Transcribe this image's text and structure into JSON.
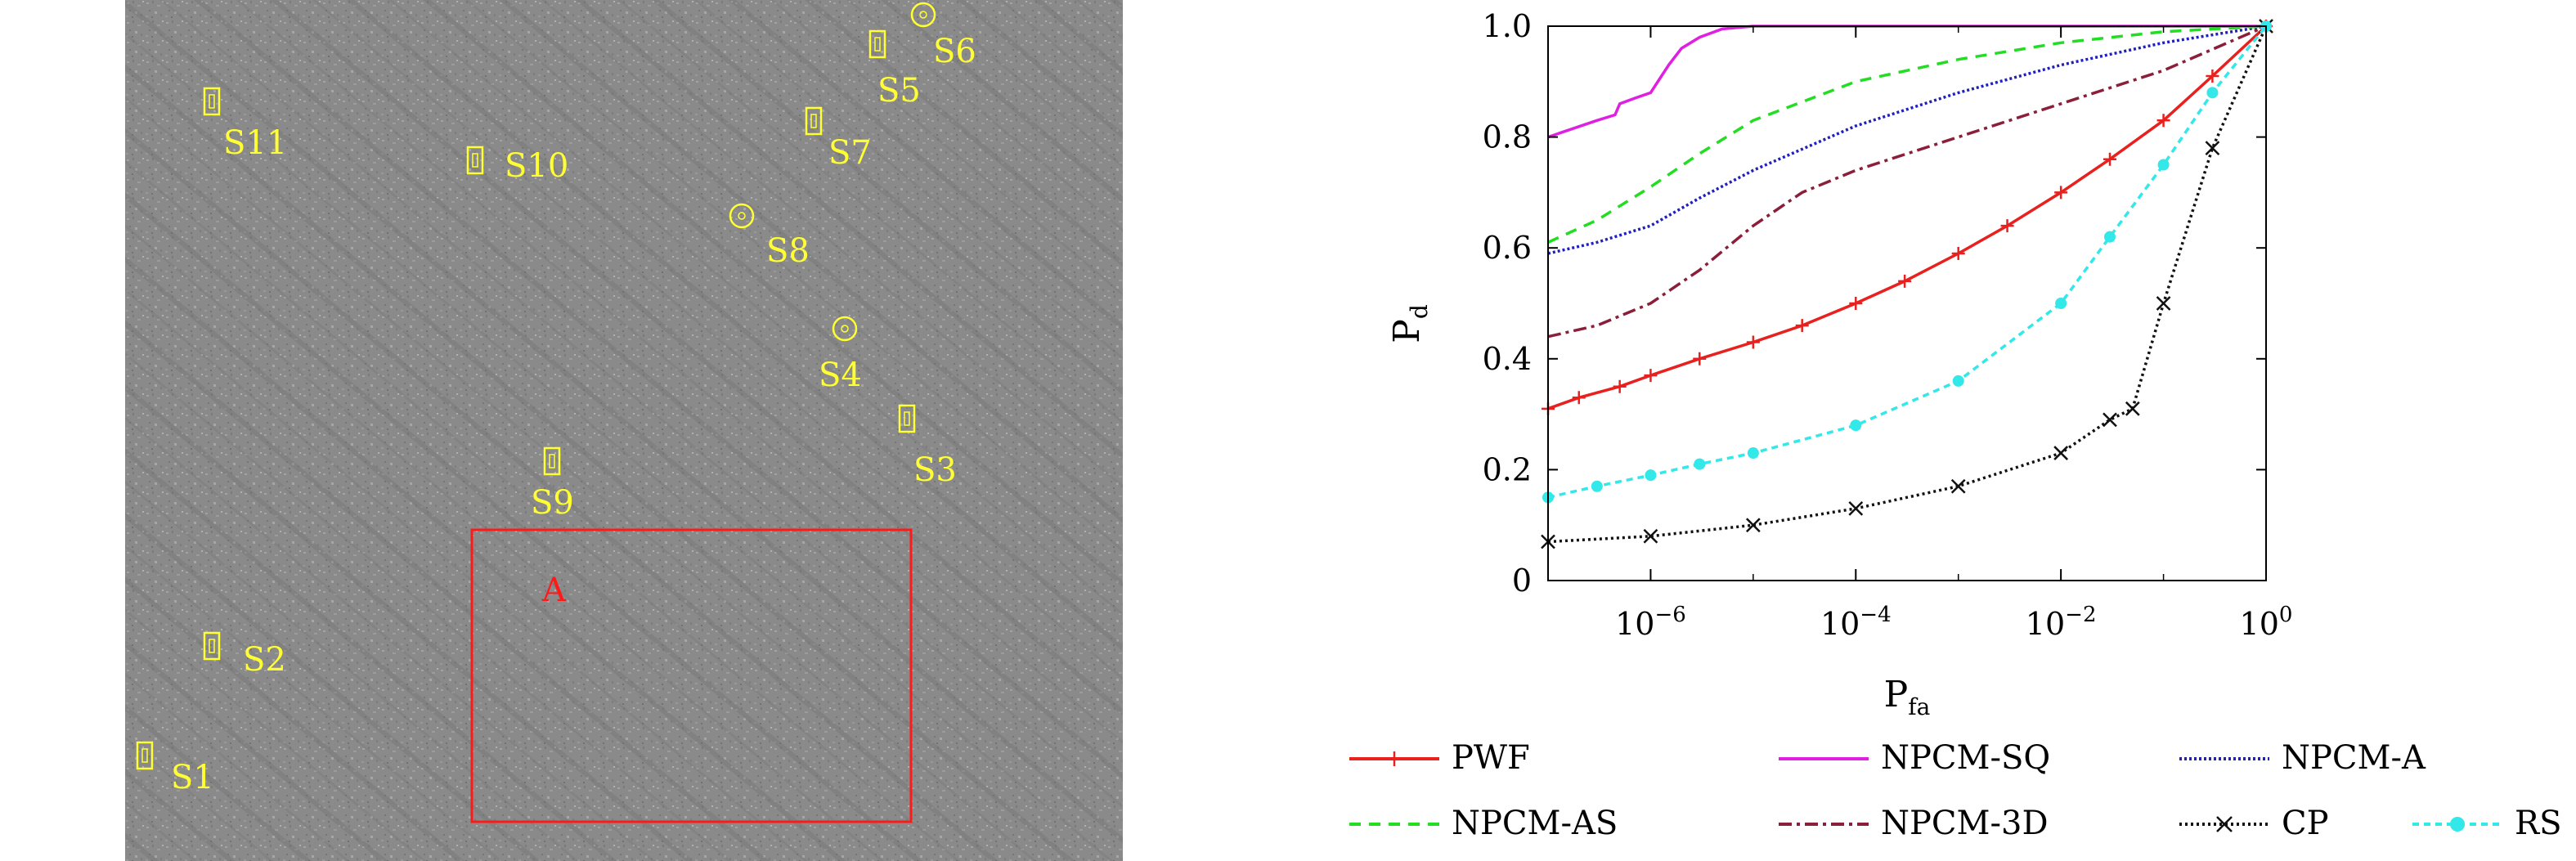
{
  "sar_image": {
    "targets": [
      {
        "label": "S1",
        "marker": "rect"
      },
      {
        "label": "S2",
        "marker": "rect"
      },
      {
        "label": "S3",
        "marker": "rect"
      },
      {
        "label": "S4",
        "marker": "circle"
      },
      {
        "label": "S5",
        "marker": "rect"
      },
      {
        "label": "S6",
        "marker": "circle"
      },
      {
        "label": "S7",
        "marker": "rect"
      },
      {
        "label": "S8",
        "marker": "circle"
      },
      {
        "label": "S9",
        "marker": "rect"
      },
      {
        "label": "S10",
        "marker": "rect"
      },
      {
        "label": "S11",
        "marker": "rect"
      }
    ],
    "region_label": "A",
    "colors": {
      "target_marker": "#ffff33",
      "region": "#ff1a1a",
      "background": "#8c8c8c"
    }
  },
  "chart_data": {
    "type": "line",
    "title": "",
    "xlabel": "P",
    "xlabel_sub": "fa",
    "ylabel": "P",
    "ylabel_sub": "d",
    "x_scale": "log",
    "xlim": [
      1e-07,
      1
    ],
    "ylim": [
      0,
      1
    ],
    "x_ticks": [
      {
        "value": 1e-06,
        "base": "10",
        "exp": "−6"
      },
      {
        "value": 0.0001,
        "base": "10",
        "exp": "−4"
      },
      {
        "value": 0.01,
        "base": "10",
        "exp": "−2"
      },
      {
        "value": 1,
        "base": "10",
        "exp": "0"
      }
    ],
    "y_ticks": [
      "0",
      "0.2",
      "0.4",
      "0.6",
      "0.8",
      "1.0"
    ],
    "legend_position": "bottom",
    "series": [
      {
        "name": "PWF",
        "color": "#e8201e",
        "dash": "",
        "marker": "plus",
        "x": [
          1e-07,
          2e-07,
          5e-07,
          1e-06,
          3e-06,
          1e-05,
          3e-05,
          0.0001,
          0.0003,
          0.001,
          0.003,
          0.01,
          0.03,
          0.1,
          0.3,
          1
        ],
        "y": [
          0.31,
          0.33,
          0.35,
          0.37,
          0.4,
          0.43,
          0.46,
          0.5,
          0.54,
          0.59,
          0.64,
          0.7,
          0.76,
          0.83,
          0.91,
          1.0
        ]
      },
      {
        "name": "NPCM-SQ",
        "color": "#e020e0",
        "dash": "",
        "marker": "none",
        "x": [
          1e-07,
          3e-07,
          4.5e-07,
          5e-07,
          7e-07,
          1e-06,
          1.5e-06,
          2e-06,
          3e-06,
          5e-06,
          1e-05,
          0.0001,
          1
        ],
        "y": [
          0.8,
          0.83,
          0.84,
          0.86,
          0.87,
          0.88,
          0.93,
          0.96,
          0.98,
          0.995,
          1.0,
          1.0,
          1.0
        ]
      },
      {
        "name": "NPCM-A",
        "color": "#2020c0",
        "dash": "3,3",
        "marker": "none",
        "x": [
          1e-07,
          3e-07,
          1e-06,
          3e-06,
          1e-05,
          0.0001,
          0.001,
          0.01,
          0.1,
          1
        ],
        "y": [
          0.59,
          0.61,
          0.64,
          0.69,
          0.74,
          0.82,
          0.88,
          0.93,
          0.97,
          1.0
        ]
      },
      {
        "name": "NPCM-AS",
        "color": "#22dd22",
        "dash": "14,10",
        "marker": "none",
        "x": [
          1e-07,
          3e-07,
          1e-06,
          3e-06,
          1e-05,
          0.0001,
          0.001,
          0.01,
          0.1,
          1
        ],
        "y": [
          0.61,
          0.65,
          0.71,
          0.77,
          0.83,
          0.9,
          0.94,
          0.97,
          0.99,
          1.0
        ]
      },
      {
        "name": "NPCM-3D",
        "color": "#8b1f3a",
        "dash": "16,6,4,6",
        "marker": "none",
        "x": [
          1e-07,
          3e-07,
          1e-06,
          3e-06,
          1e-05,
          3e-05,
          0.0001,
          0.001,
          0.01,
          0.1,
          1
        ],
        "y": [
          0.44,
          0.46,
          0.5,
          0.56,
          0.64,
          0.7,
          0.74,
          0.8,
          0.86,
          0.92,
          1.0
        ]
      },
      {
        "name": "CP",
        "color": "#111111",
        "dash": "3,4",
        "marker": "x",
        "x": [
          1e-07,
          1e-06,
          1e-05,
          0.0001,
          0.001,
          0.01,
          0.03,
          0.05,
          0.1,
          0.3,
          1
        ],
        "y": [
          0.07,
          0.08,
          0.1,
          0.13,
          0.17,
          0.23,
          0.29,
          0.31,
          0.5,
          0.78,
          1.0
        ]
      },
      {
        "name": "RS",
        "color": "#33e8e8",
        "dash": "8,6",
        "marker": "star",
        "x": [
          1e-07,
          3e-07,
          1e-06,
          3e-06,
          1e-05,
          0.0001,
          0.001,
          0.01,
          0.03,
          0.1,
          0.3,
          1
        ],
        "y": [
          0.15,
          0.17,
          0.19,
          0.21,
          0.23,
          0.28,
          0.36,
          0.5,
          0.62,
          0.75,
          0.88,
          1.0
        ]
      }
    ]
  }
}
